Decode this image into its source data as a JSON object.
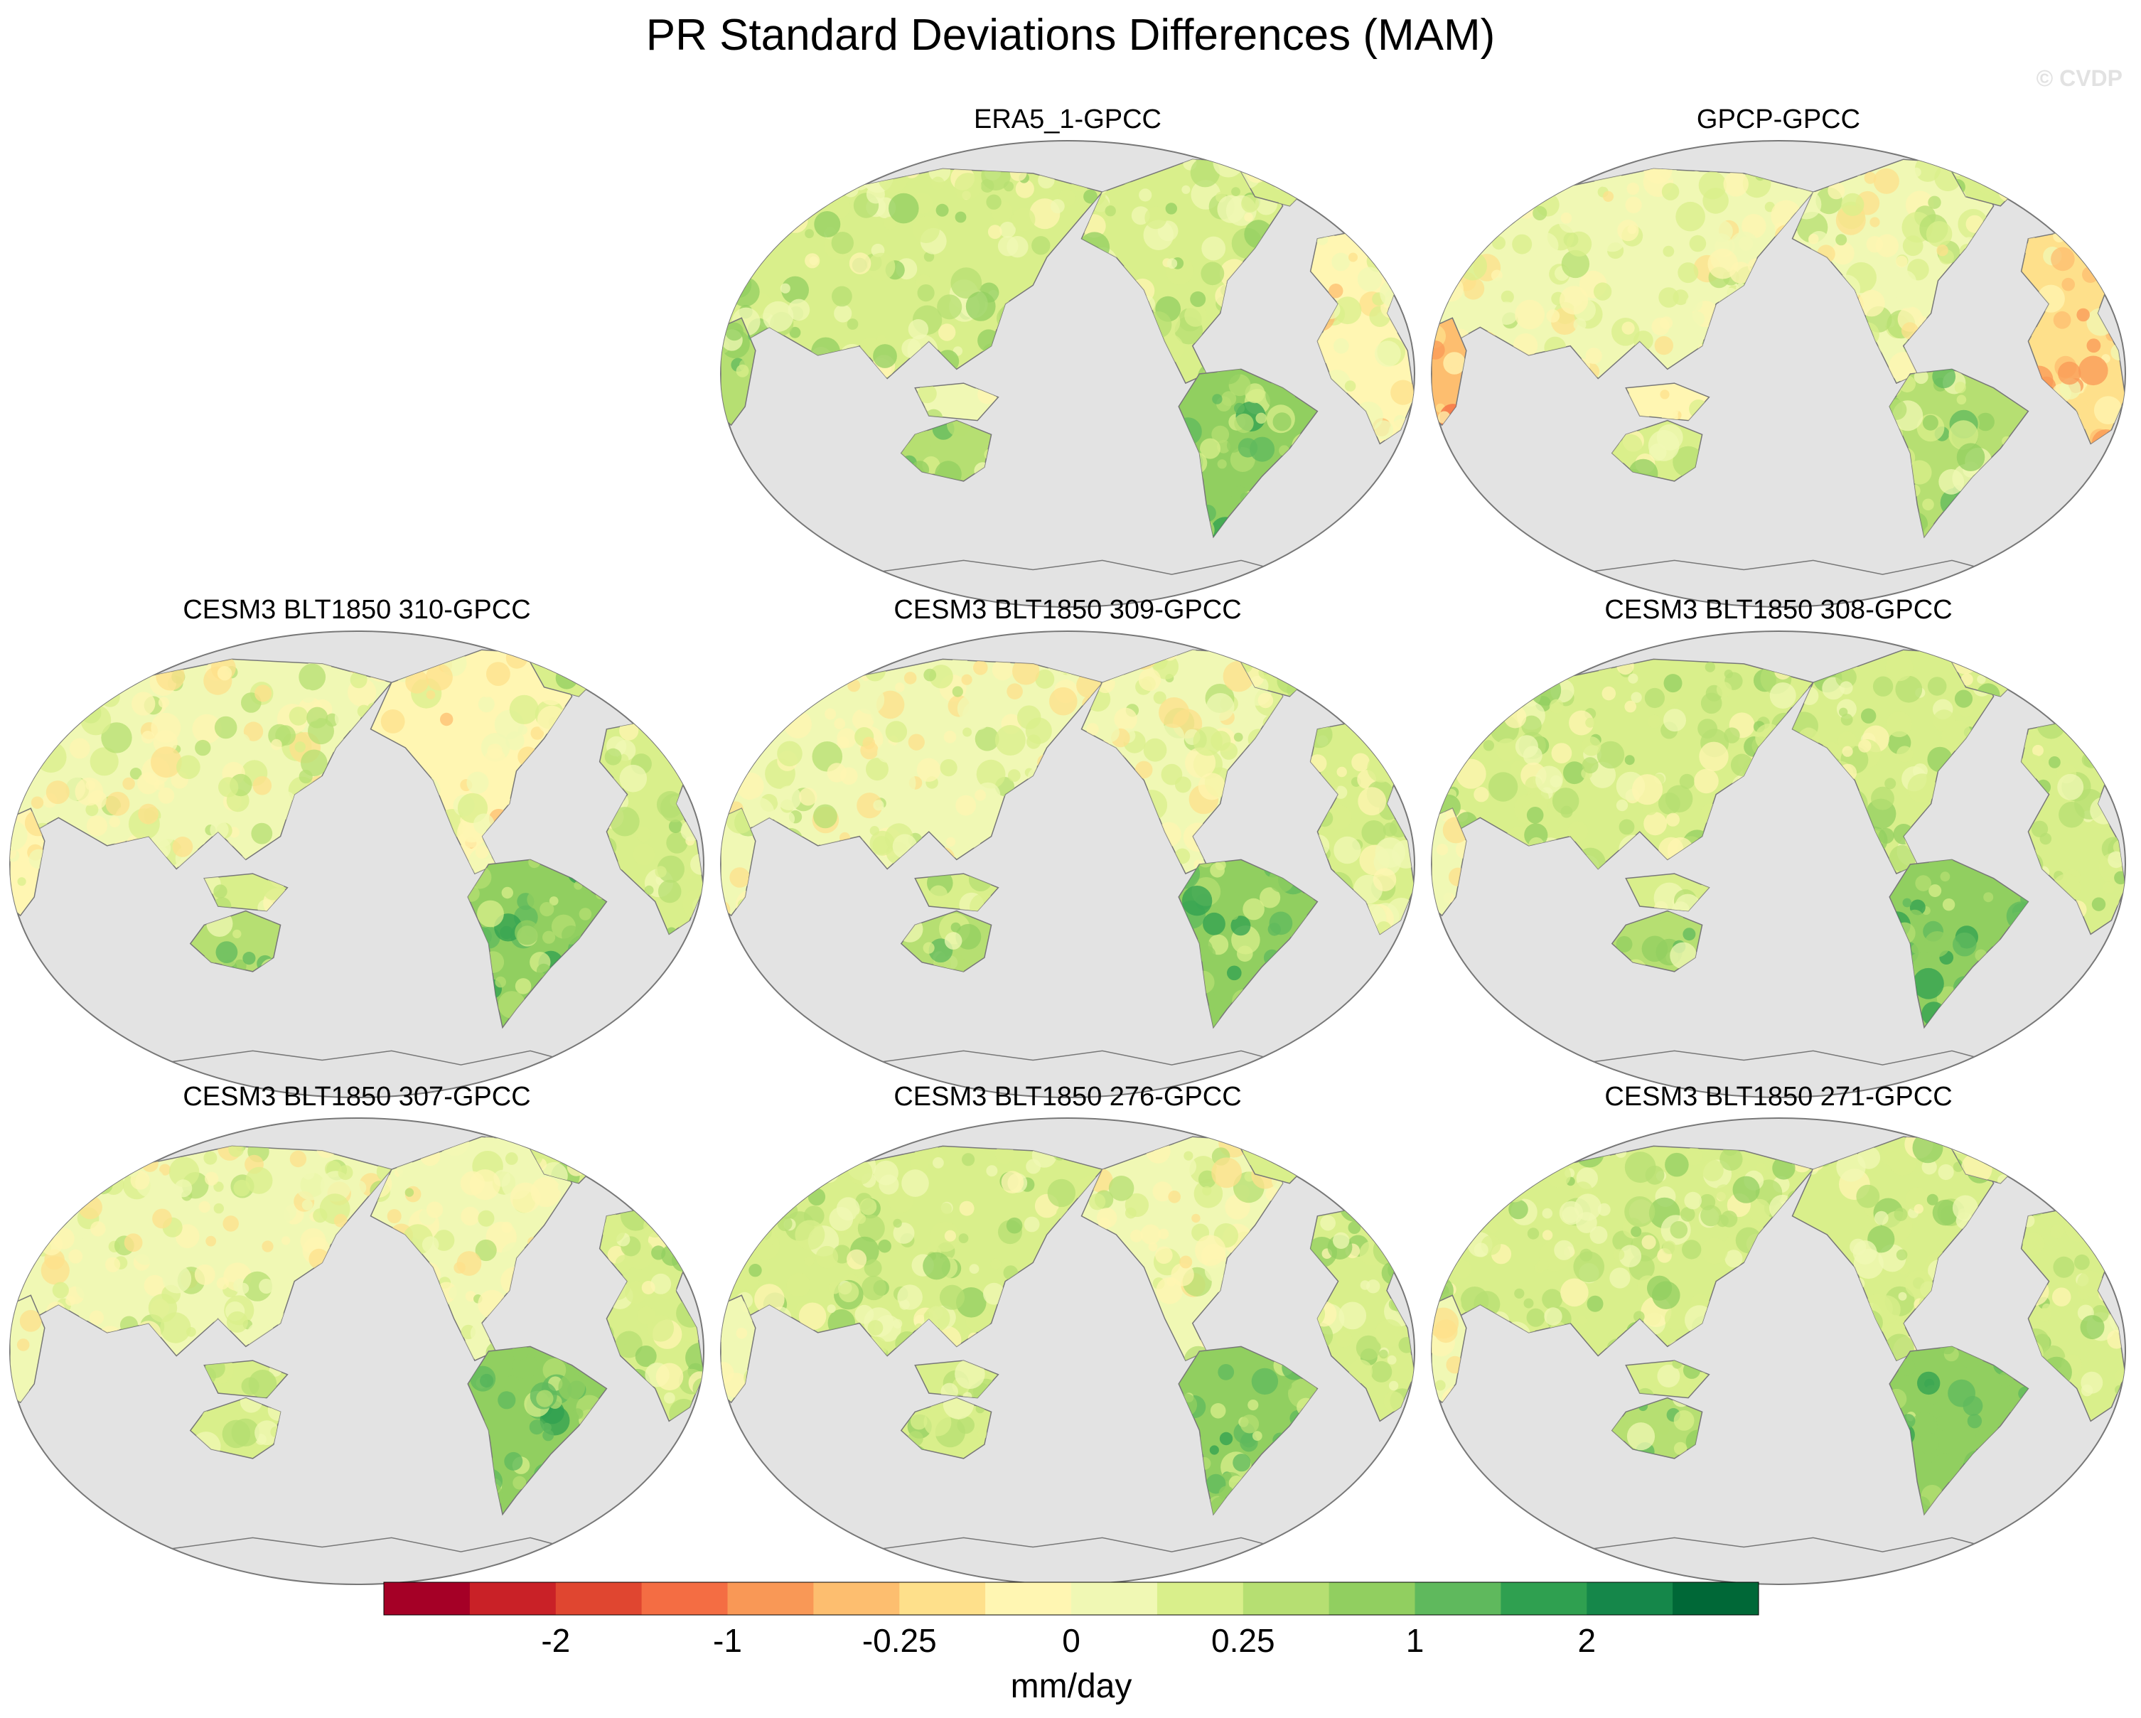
{
  "title": "PR Standard Deviations Differences (MAM)",
  "watermark": "© CVDP",
  "ocean_color": "#e3e3e3",
  "coast_color": "#777777",
  "panels": [
    {
      "title": "ERA5_1-GPCC",
      "variant": 1
    },
    {
      "title": "GPCP-GPCC",
      "variant": 2
    },
    {
      "title": "CESM3 BLT1850 310-GPCC",
      "variant": 3
    },
    {
      "title": "CESM3 BLT1850 309-GPCC",
      "variant": 4
    },
    {
      "title": "CESM3 BLT1850 308-GPCC",
      "variant": 5
    },
    {
      "title": "CESM3 BLT1850 307-GPCC",
      "variant": 6
    },
    {
      "title": "CESM3 BLT1850 276-GPCC",
      "variant": 7
    },
    {
      "title": "CESM3 BLT1850 271-GPCC",
      "variant": 8
    }
  ],
  "colorbar": {
    "colors": [
      "#a50026",
      "#c92127",
      "#e04630",
      "#f46d43",
      "#f99856",
      "#fdbe6f",
      "#fee08b",
      "#fff6b2",
      "#f0f8b4",
      "#d9ef8b",
      "#b6df72",
      "#91cf60",
      "#5fb95d",
      "#2fa050",
      "#15874a",
      "#006837"
    ],
    "labels": [
      {
        "text": "-2",
        "boundary": 2
      },
      {
        "text": "-1",
        "boundary": 4
      },
      {
        "text": "-0.25",
        "boundary": 6
      },
      {
        "text": "0",
        "boundary": 8
      },
      {
        "text": "0.25",
        "boundary": 10
      },
      {
        "text": "1",
        "boundary": 12
      },
      {
        "text": "2",
        "boundary": 14
      }
    ],
    "unit": "mm/day"
  }
}
